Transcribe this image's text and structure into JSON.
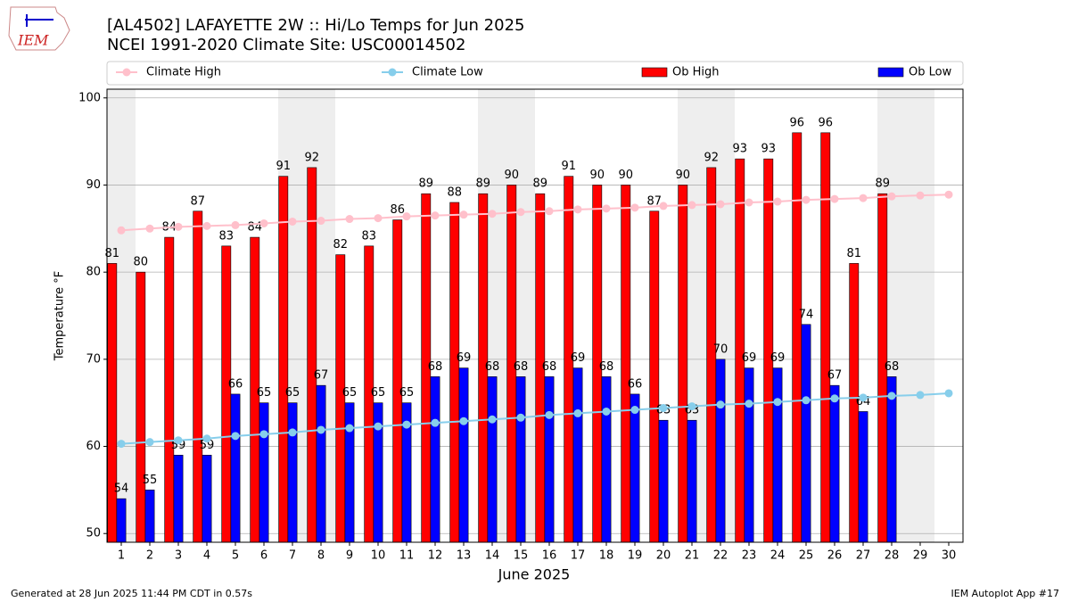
{
  "chart_data": {
    "type": "bar",
    "title": "[AL4502] LAFAYETTE 2W :: Hi/Lo Temps for Jun 2025",
    "subtitle": "NCEI 1991-2020 Climate Site: USC00014502",
    "x_label": "June 2025",
    "y_label": "Temperature °F",
    "footer_left": "Generated at 28 Jun 2025 11:44 PM CDT in 0.57s",
    "footer_right": "IEM Autoplot App #17",
    "logo_text": "IEM",
    "x": [
      1,
      2,
      3,
      4,
      5,
      6,
      7,
      8,
      9,
      10,
      11,
      12,
      13,
      14,
      15,
      16,
      17,
      18,
      19,
      20,
      21,
      22,
      23,
      24,
      25,
      26,
      27,
      28,
      29,
      30
    ],
    "xlim": [
      0.5,
      30.5
    ],
    "xticks": [
      1,
      2,
      3,
      4,
      5,
      6,
      7,
      8,
      9,
      10,
      11,
      12,
      13,
      14,
      15,
      16,
      17,
      18,
      19,
      20,
      21,
      22,
      23,
      24,
      25,
      26,
      27,
      28,
      29,
      30
    ],
    "ylim": [
      49,
      101
    ],
    "yticks": [
      50,
      60,
      70,
      80,
      90,
      100
    ],
    "grid": true,
    "weekend_shading": [
      1,
      7,
      8,
      14,
      15,
      21,
      22,
      28,
      29
    ],
    "shade_color": "#eeeeee",
    "series": [
      {
        "name": "Climate High",
        "type": "line",
        "color": "#ffc0cb",
        "values": [
          84.8,
          85.0,
          85.2,
          85.3,
          85.4,
          85.6,
          85.8,
          85.9,
          86.1,
          86.2,
          86.4,
          86.5,
          86.6,
          86.7,
          86.9,
          87.0,
          87.2,
          87.3,
          87.4,
          87.6,
          87.7,
          87.8,
          88.0,
          88.1,
          88.3,
          88.4,
          88.5,
          88.7,
          88.8,
          88.9
        ]
      },
      {
        "name": "Climate Low",
        "type": "line",
        "color": "#87ceeb",
        "values": [
          60.3,
          60.5,
          60.7,
          60.9,
          61.2,
          61.4,
          61.6,
          61.9,
          62.1,
          62.3,
          62.5,
          62.7,
          62.9,
          63.1,
          63.3,
          63.6,
          63.8,
          64.0,
          64.2,
          64.4,
          64.6,
          64.8,
          64.9,
          65.1,
          65.3,
          65.5,
          65.6,
          65.8,
          65.9,
          66.1
        ]
      },
      {
        "name": "Ob High",
        "type": "bar",
        "color": "#ff0000",
        "values": [
          81,
          80,
          84,
          87,
          83,
          84,
          91,
          92,
          82,
          83,
          86,
          89,
          88,
          89,
          90,
          89,
          91,
          90,
          90,
          87,
          90,
          92,
          93,
          93,
          96,
          96,
          81,
          89,
          null,
          null
        ]
      },
      {
        "name": "Ob Low",
        "type": "bar",
        "color": "#0000ff",
        "values": [
          54,
          55,
          59,
          59,
          66,
          65,
          65,
          67,
          65,
          65,
          65,
          68,
          69,
          68,
          68,
          68,
          69,
          68,
          66,
          63,
          63,
          70,
          69,
          69,
          74,
          67,
          64,
          68,
          null,
          null
        ]
      }
    ]
  }
}
